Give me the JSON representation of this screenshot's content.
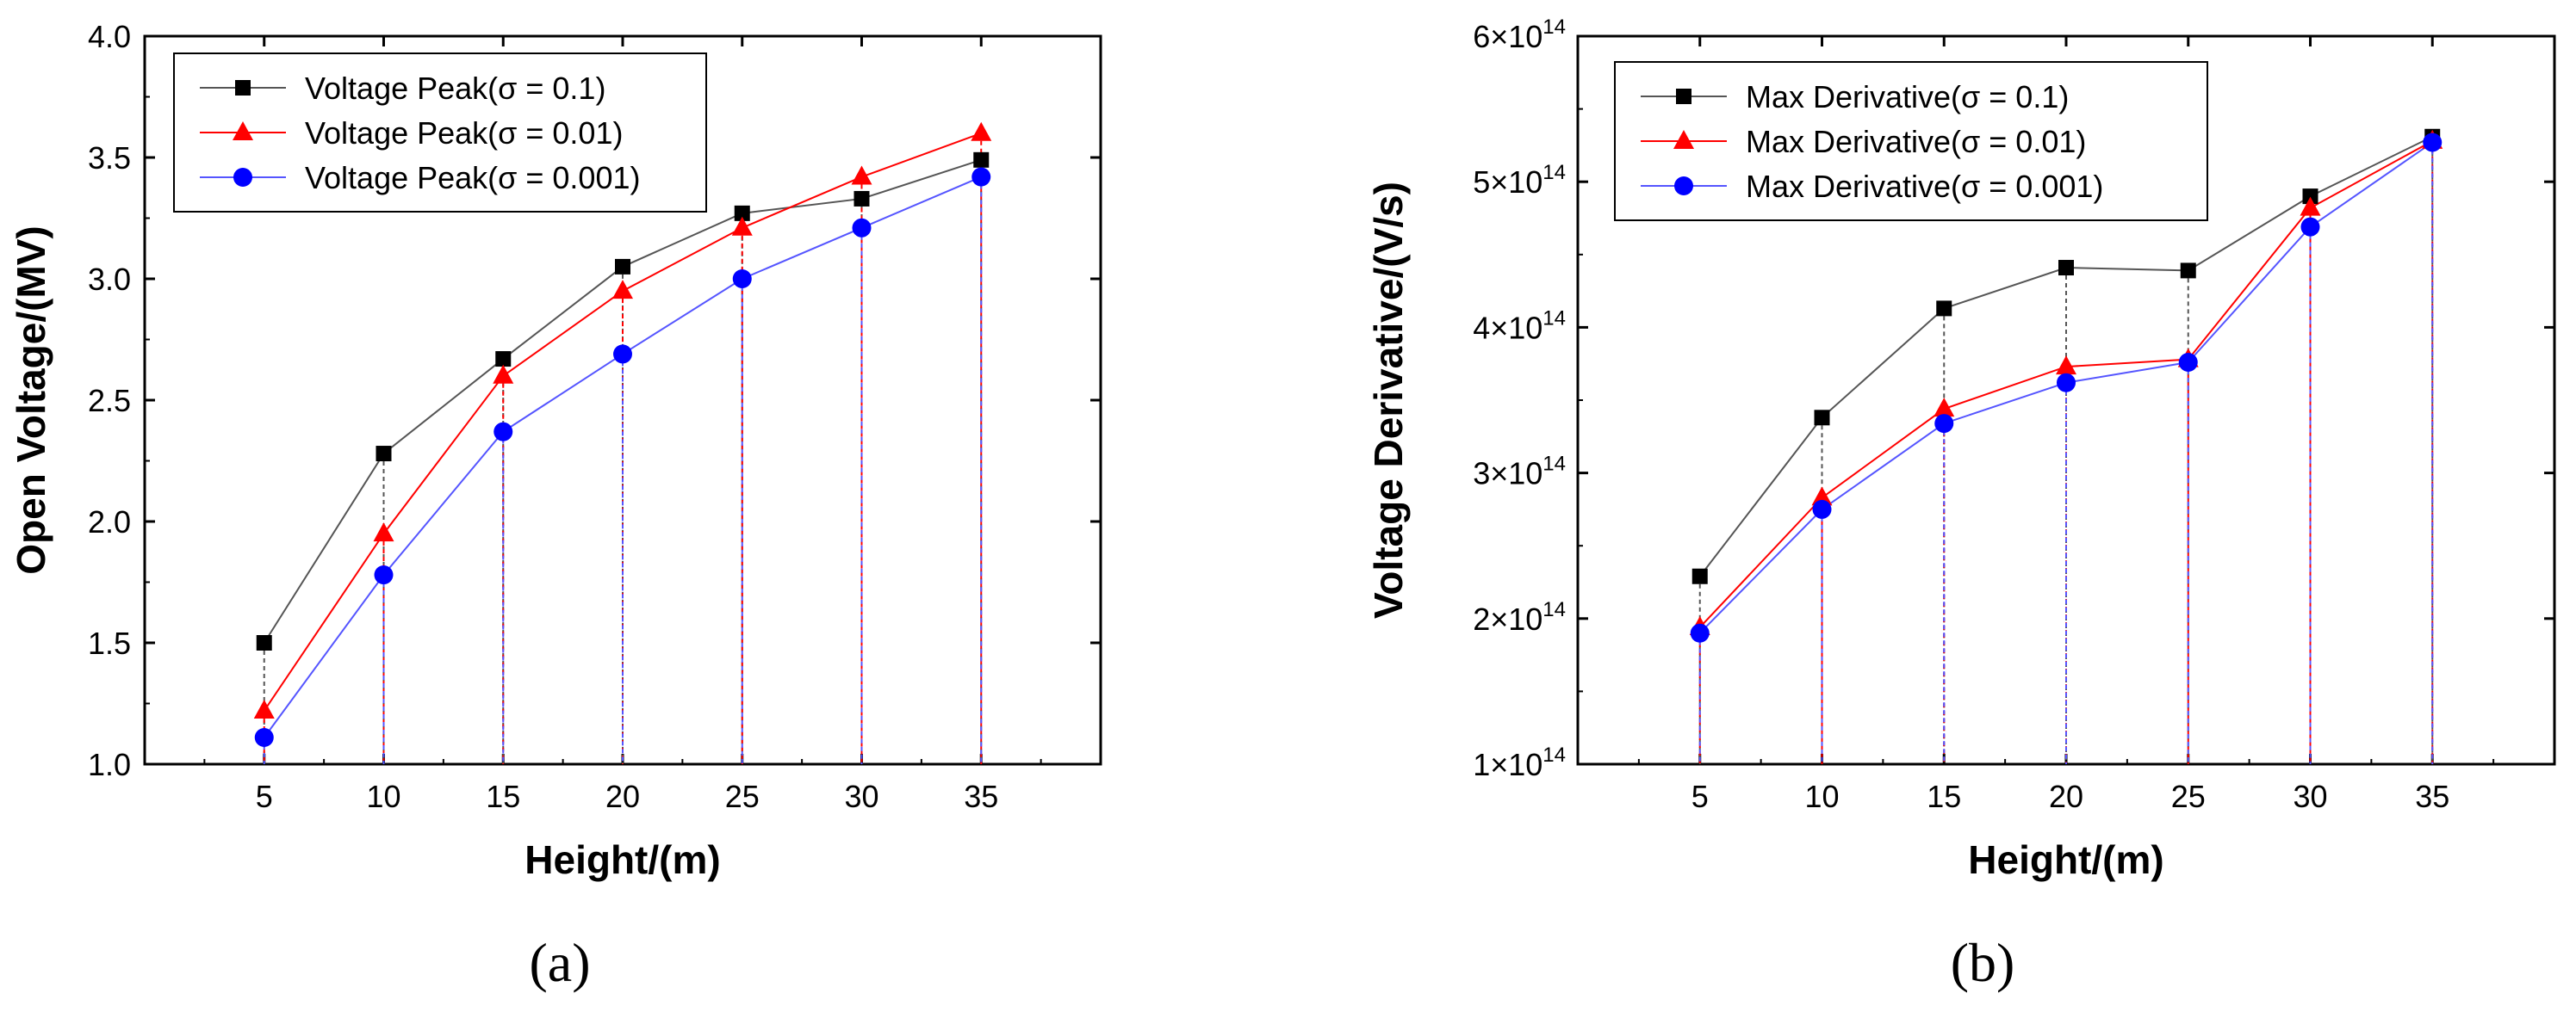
{
  "chart_data": [
    {
      "type": "line",
      "panel_label": "(a)",
      "xlabel": "Height/(m)",
      "ylabel": "Open Voltage/(MV)",
      "x": [
        5,
        10,
        15,
        20,
        25,
        30,
        35
      ],
      "xlim": [
        0,
        40
      ],
      "ylim": [
        1.0,
        4.0
      ],
      "xticks": [
        "5",
        "10",
        "15",
        "20",
        "25",
        "30",
        "35"
      ],
      "yticks": [
        "1.0",
        "1.5",
        "2.0",
        "2.5",
        "3.0",
        "3.5",
        "4.0"
      ],
      "ytick_values": [
        1.0,
        1.5,
        2.0,
        2.5,
        3.0,
        3.5,
        4.0
      ],
      "legend_position": "top-left",
      "series": [
        {
          "name": "Voltage Peak(σ = 0.1)",
          "color": "#000000",
          "line_color": "#555555",
          "marker": "square",
          "values": [
            1.5,
            2.28,
            2.67,
            3.05,
            3.27,
            3.33,
            3.49
          ]
        },
        {
          "name": "Voltage Peak(σ = 0.01)",
          "color": "#ff0000",
          "line_color": "#ff0000",
          "marker": "triangle",
          "values": [
            1.22,
            1.95,
            2.6,
            2.95,
            3.21,
            3.42,
            3.6
          ]
        },
        {
          "name": "Voltage Peak(σ = 0.001)",
          "color": "#0000ff",
          "line_color": "#5555ff",
          "marker": "circle",
          "values": [
            1.11,
            1.78,
            2.37,
            2.69,
            3.0,
            3.21,
            3.42
          ]
        }
      ]
    },
    {
      "type": "line",
      "panel_label": "(b)",
      "xlabel": "Height/(m)",
      "ylabel": "Voltage Derivative/(V/s)",
      "x": [
        5,
        10,
        15,
        20,
        25,
        30,
        35
      ],
      "xlim": [
        0,
        40
      ],
      "ylim": [
        100000000000000.0,
        600000000000000.0
      ],
      "xticks": [
        "5",
        "10",
        "15",
        "20",
        "25",
        "30",
        "35"
      ],
      "yticks": [
        "1×10",
        "2×10",
        "3×10",
        "4×10",
        "5×10",
        "6×10"
      ],
      "ytick_exponent": "14",
      "ytick_values": [
        100000000000000.0,
        200000000000000.0,
        300000000000000.0,
        400000000000000.0,
        500000000000000.0,
        600000000000000.0
      ],
      "legend_position": "top-left",
      "series": [
        {
          "name": "Max Derivative(σ = 0.1)",
          "color": "#000000",
          "line_color": "#555555",
          "marker": "square",
          "values": [
            229000000000000.0,
            338000000000000.0,
            413000000000000.0,
            441000000000000.0,
            439000000000000.0,
            490000000000000.0,
            531000000000000.0
          ]
        },
        {
          "name": "Max Derivative(σ = 0.01)",
          "color": "#ff0000",
          "line_color": "#ff0000",
          "marker": "triangle",
          "values": [
            194000000000000.0,
            283000000000000.0,
            344000000000000.0,
            373000000000000.0,
            378000000000000.0,
            482000000000000.0,
            528000000000000.0
          ]
        },
        {
          "name": "Max Derivative(σ = 0.001)",
          "color": "#0000ff",
          "line_color": "#5555ff",
          "marker": "circle",
          "values": [
            190000000000000.0,
            275000000000000.0,
            334000000000000.0,
            362000000000000.0,
            376000000000000.0,
            469000000000000.0,
            527000000000000.0
          ]
        }
      ]
    }
  ]
}
